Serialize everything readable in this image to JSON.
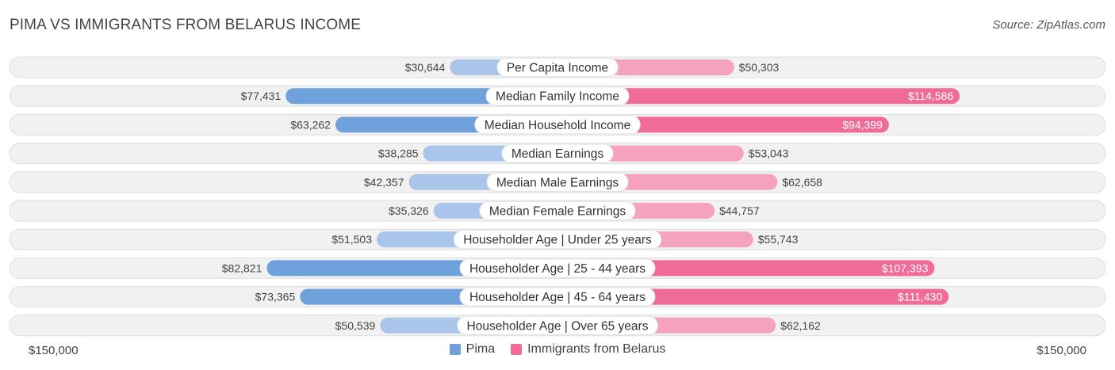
{
  "header": {
    "title": "PIMA VS IMMIGRANTS FROM BELARUS INCOME",
    "source": "Source: ZipAtlas.com"
  },
  "axis": {
    "left_label": "$150,000",
    "right_label": "$150,000"
  },
  "legend": {
    "left": "Pima",
    "right": "Immigrants from Belarus"
  },
  "colors": {
    "left_strong": "#6fa1dc",
    "left_light": "#a9c6ea",
    "right_strong": "#f06b97",
    "right_light": "#f5a2be",
    "row_bg": "#f1f1f1",
    "row_border": "#dedede"
  },
  "chart_data": {
    "type": "bar",
    "orientation": "horizontal-diverging",
    "title": "PIMA VS IMMIGRANTS FROM BELARUS INCOME",
    "xlim": [
      -150000,
      150000
    ],
    "categories": [
      "Per Capita Income",
      "Median Family Income",
      "Median Household Income",
      "Median Earnings",
      "Median Male Earnings",
      "Median Female Earnings",
      "Householder Age | Under 25 years",
      "Householder Age | 25 - 44 years",
      "Householder Age | 45 - 64 years",
      "Householder Age | Over 65 years"
    ],
    "series": [
      {
        "name": "Pima",
        "values": [
          30644,
          77431,
          63262,
          38285,
          42357,
          35326,
          51503,
          82821,
          73365,
          50539
        ],
        "labels": [
          "$30,644",
          "$77,431",
          "$63,262",
          "$38,285",
          "$42,357",
          "$35,326",
          "$51,503",
          "$82,821",
          "$73,365",
          "$50,539"
        ]
      },
      {
        "name": "Immigrants from Belarus",
        "values": [
          50303,
          114586,
          94399,
          53043,
          62658,
          44757,
          55743,
          107393,
          111430,
          62162
        ],
        "labels": [
          "$50,303",
          "$114,586",
          "$94,399",
          "$53,043",
          "$62,658",
          "$44,757",
          "$55,743",
          "$107,393",
          "$111,430",
          "$62,162"
        ]
      }
    ],
    "highlighted_rows": [
      1,
      2,
      7,
      8
    ]
  }
}
